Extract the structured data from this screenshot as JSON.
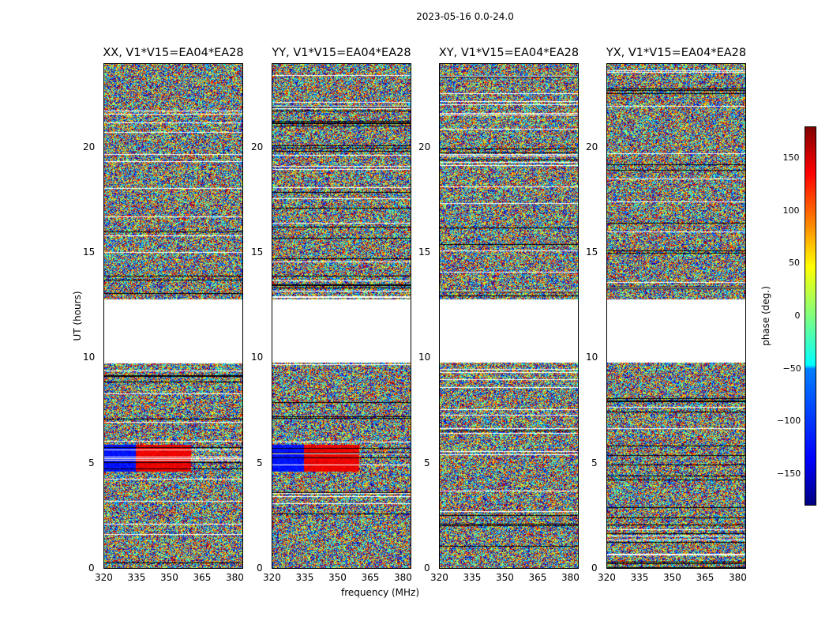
{
  "chart_data": {
    "type": "heatmap",
    "title": "2023-05-16 0.0-24.0",
    "xlabel": "frequency (MHz)",
    "ylabel": "UT (hours)",
    "xlim": [
      320,
      384
    ],
    "ylim": [
      0,
      24
    ],
    "xticks": [
      "320",
      "335",
      "350",
      "365",
      "380"
    ],
    "yticks": [
      "0",
      "5",
      "10",
      "15",
      "20"
    ],
    "panels": [
      {
        "title": "XX, V1*V15=EA04*EA28"
      },
      {
        "title": "YY, V1*V15=EA04*EA28"
      },
      {
        "title": "XY, V1*V15=EA04*EA28"
      },
      {
        "title": "YX, V1*V15=EA04*EA28"
      }
    ],
    "no_data_interval_hours": [
      9.8,
      12.8
    ],
    "colorbar": {
      "label": "phase (deg.)",
      "range": [
        -180,
        180
      ],
      "colormap": "jet",
      "ticks": [
        "150",
        "100",
        "50",
        "0",
        "−50",
        "−100",
        "−150"
      ],
      "tick_values": [
        150,
        100,
        50,
        0,
        -50,
        -100,
        -150
      ]
    }
  }
}
